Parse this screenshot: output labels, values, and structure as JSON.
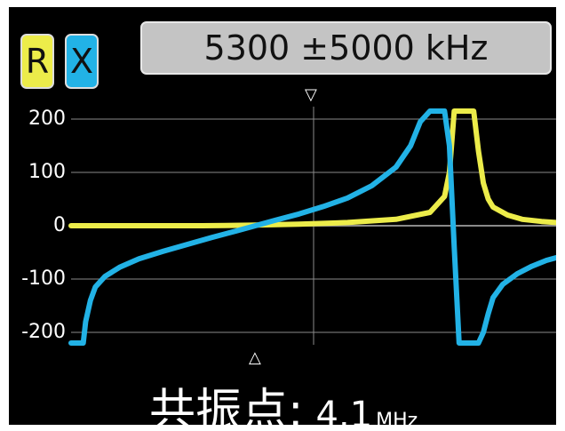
{
  "header": {
    "r_badge": "R",
    "x_badge": "X",
    "r_color": "#ecec4a",
    "x_color": "#22b2e6",
    "sweep_range": "5300 ±5000 kHz"
  },
  "markers": {
    "top": "▽",
    "bottom": "△"
  },
  "footer": {
    "label": "共振点:",
    "value": "4.1",
    "unit": "MHz"
  },
  "chart_data": {
    "type": "line",
    "x_range_khz": [
      300,
      10300
    ],
    "ylim": [
      -220,
      220
    ],
    "yticks": [
      200,
      100,
      0,
      -100,
      -200
    ],
    "grid": true,
    "series": [
      {
        "name": "R",
        "color": "#ecec4a",
        "x": [
          300,
          1000,
          2000,
          3000,
          4000,
          5000,
          6000,
          7000,
          7700,
          8000,
          8100,
          8200,
          8300,
          8400,
          8500,
          8600,
          8700,
          8800,
          8900,
          9000,
          9300,
          9600,
          10000,
          10300
        ],
        "y": [
          0,
          0,
          0,
          0,
          1,
          3,
          6,
          12,
          25,
          55,
          100,
          215,
          215,
          215,
          215,
          215,
          140,
          80,
          50,
          35,
          20,
          12,
          8,
          6
        ]
      },
      {
        "name": "X",
        "color": "#22b2e6",
        "x": [
          300,
          550,
          600,
          700,
          800,
          1000,
          1300,
          1700,
          2200,
          2700,
          3200,
          3700,
          4100,
          4500,
          5000,
          5500,
          6000,
          6500,
          7000,
          7300,
          7500,
          7700,
          7800,
          8000,
          8100,
          8200,
          8300,
          8400,
          8500,
          8600,
          8700,
          8800,
          8900,
          9000,
          9200,
          9500,
          9800,
          10100,
          10300
        ],
        "y": [
          -220,
          -220,
          -180,
          -140,
          -115,
          -95,
          -78,
          -62,
          -48,
          -35,
          -22,
          -10,
          0,
          10,
          22,
          36,
          52,
          75,
          110,
          150,
          195,
          215,
          215,
          215,
          150,
          -40,
          -220,
          -220,
          -220,
          -220,
          -220,
          -200,
          -165,
          -135,
          -110,
          -90,
          -76,
          -65,
          -60
        ]
      }
    ]
  }
}
